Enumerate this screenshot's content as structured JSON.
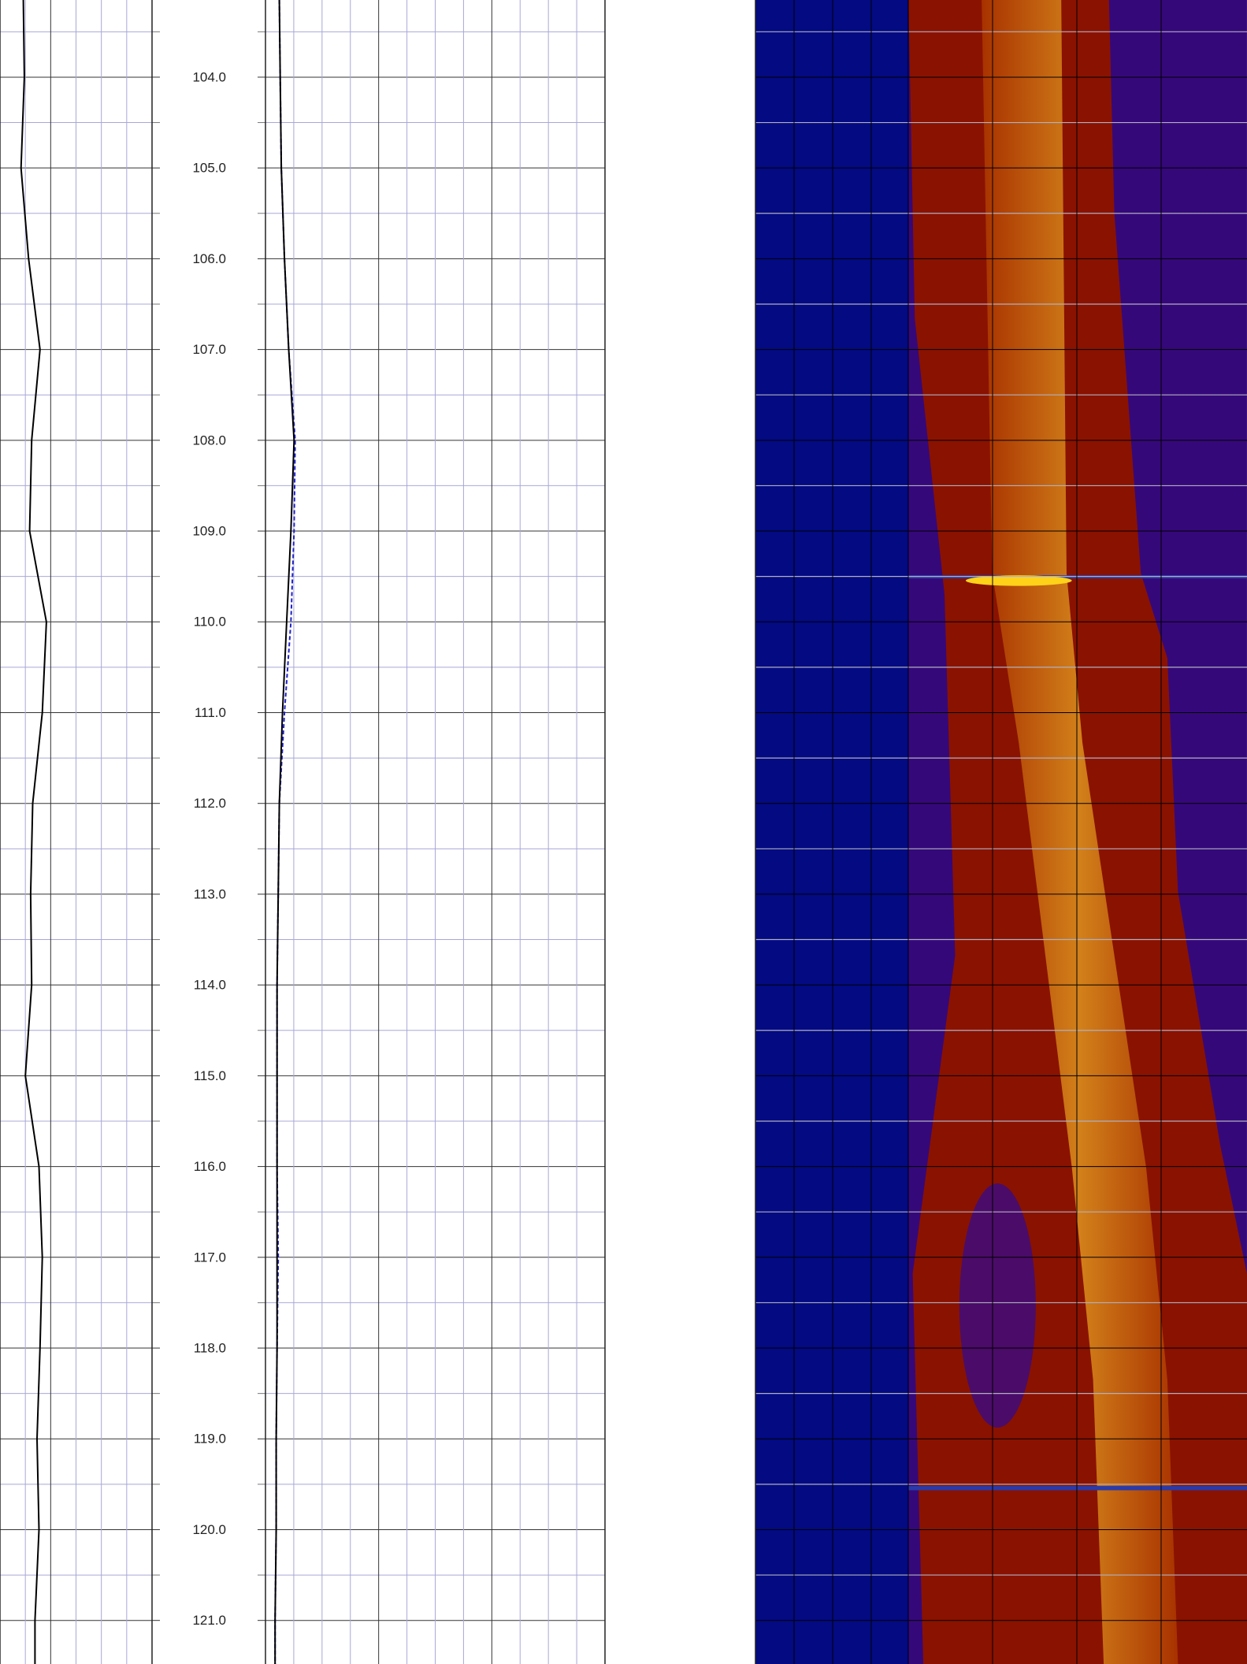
{
  "chart_data": {
    "type": "line",
    "ylim": [
      103.15,
      121.48
    ],
    "yticks": [
      {
        "value": 104,
        "label": "104.0"
      },
      {
        "value": 105,
        "label": "105.0"
      },
      {
        "value": 106,
        "label": "106.0"
      },
      {
        "value": 107,
        "label": "107.0"
      },
      {
        "value": 108,
        "label": "108.0"
      },
      {
        "value": 109,
        "label": "109.0"
      },
      {
        "value": 110,
        "label": "110.0"
      },
      {
        "value": 111,
        "label": "111.0"
      },
      {
        "value": 112,
        "label": "112.0"
      },
      {
        "value": 113,
        "label": "113.0"
      },
      {
        "value": 114,
        "label": "114.0"
      },
      {
        "value": 115,
        "label": "115.0"
      },
      {
        "value": 116,
        "label": "116.0"
      },
      {
        "value": 117,
        "label": "117.0"
      },
      {
        "value": 118,
        "label": "118.0"
      },
      {
        "value": 119,
        "label": "119.0"
      },
      {
        "value": 120,
        "label": "120.0"
      },
      {
        "value": 121,
        "label": "121.0"
      }
    ],
    "yminor": [
      103.5,
      104.5,
      105.5,
      106.5,
      107.5,
      108.5,
      109.5,
      110.5,
      111.5,
      112.5,
      113.5,
      114.5,
      115.5,
      116.5,
      117.5,
      118.5,
      119.5,
      120.5
    ],
    "depth": [
      103.15,
      104,
      105,
      106,
      107,
      108,
      109,
      110,
      111,
      112,
      113,
      114,
      115,
      116,
      117,
      118,
      119,
      120,
      121,
      121.48
    ],
    "tracks": [
      {
        "xlim": [
          0,
          6
        ],
        "xticks": [
          0,
          1,
          2,
          3,
          4,
          5,
          6
        ],
        "xmajor": [
          0,
          2,
          6
        ],
        "series": [
          {
            "color": "#000000",
            "dash": false,
            "values": [
              0.92,
              0.96,
              0.83,
              1.13,
              1.58,
              1.25,
              1.17,
              1.83,
              1.67,
              1.29,
              1.21,
              1.25,
              1.0,
              1.54,
              1.67,
              1.58,
              1.46,
              1.54,
              1.38,
              1.38
            ]
          }
        ]
      },
      {
        "xlim": [
          0,
          12
        ],
        "xticks": [
          0,
          1,
          2,
          3,
          4,
          5,
          6,
          7,
          8,
          9,
          10,
          11,
          12
        ],
        "xmajor": [
          0,
          4,
          8,
          12
        ],
        "series": [
          {
            "color": "#2020c8",
            "dash": true,
            "values": [
              0.49,
              0.52,
              0.56,
              0.67,
              0.82,
              1.05,
              1.01,
              0.9,
              0.67,
              0.49,
              0.45,
              0.41,
              0.41,
              0.41,
              0.45,
              0.41,
              0.38,
              0.38,
              0.34,
              0.34
            ]
          },
          {
            "color": "#000000",
            "dash": false,
            "values": [
              0.49,
              0.52,
              0.56,
              0.67,
              0.82,
              1.01,
              0.9,
              0.75,
              0.6,
              0.49,
              0.45,
              0.41,
              0.41,
              0.41,
              0.41,
              0.41,
              0.38,
              0.38,
              0.34,
              0.34
            ]
          }
        ]
      }
    ]
  }
}
